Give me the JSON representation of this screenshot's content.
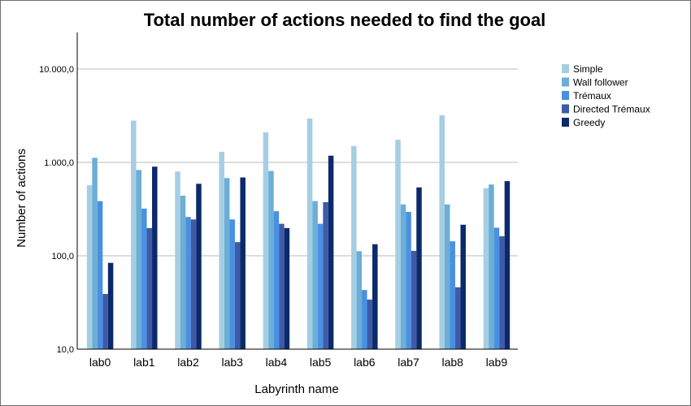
{
  "chart_data": {
    "type": "bar",
    "title": "Total number of actions needed to find the goal",
    "xlabel": "Labyrinth name",
    "ylabel": "Number of actions",
    "yscale": "log",
    "ylim": [
      10,
      20000
    ],
    "yticks": [
      10,
      100,
      1000,
      10000
    ],
    "ytick_labels": [
      "10,0",
      "100,0",
      "1.000,0",
      "10.000,0"
    ],
    "grid": true,
    "legend_position": "top-right",
    "categories": [
      "lab0",
      "lab1",
      "lab2",
      "lab3",
      "lab4",
      "lab5",
      "lab6",
      "lab7",
      "lab8",
      "lab9"
    ],
    "series": [
      {
        "name": "Simple",
        "color": "#a6cee3",
        "values": [
          570,
          2800,
          800,
          1300,
          2100,
          2950,
          1500,
          1750,
          3200,
          530
        ]
      },
      {
        "name": "Wall follower",
        "color": "#6baed6",
        "values": [
          1120,
          830,
          440,
          680,
          810,
          385,
          112,
          355,
          355,
          580
        ]
      },
      {
        "name": "Trémaux",
        "color": "#4a90e2",
        "values": [
          385,
          320,
          260,
          245,
          300,
          220,
          43,
          295,
          143,
          200
        ]
      },
      {
        "name": "Directed Trémaux",
        "color": "#3f5aa8",
        "values": [
          39,
          198,
          245,
          140,
          220,
          375,
          34,
          113,
          46,
          162
        ]
      },
      {
        "name": "Greedy",
        "color": "#0b2a6b",
        "values": [
          84,
          900,
          590,
          690,
          198,
          1180,
          133,
          540,
          215,
          630
        ]
      }
    ]
  }
}
